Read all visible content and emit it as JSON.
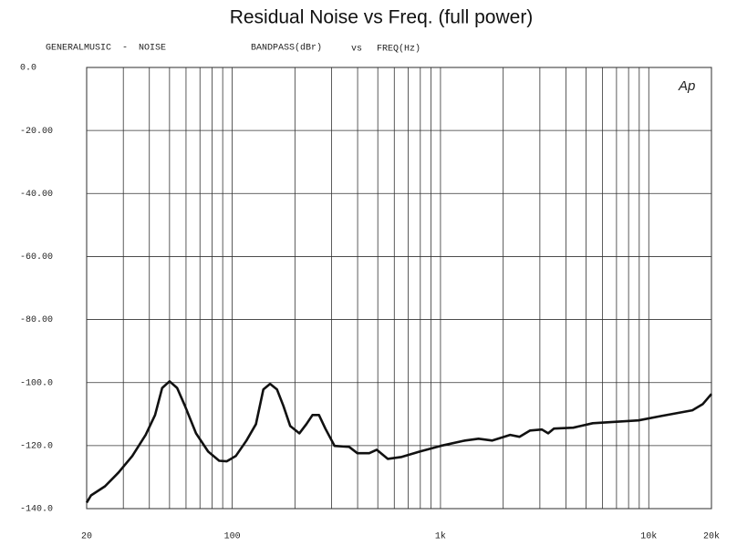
{
  "chart_data": {
    "type": "line",
    "title": "Residual Noise vs Freq. (full power)",
    "header": [
      "GENERALMUSIC  -  NOISE",
      "BANDPASS(dBr)",
      "vs",
      "FREQ(Hz)"
    ],
    "logo": "Ap",
    "log_x": true,
    "grid": true,
    "xlim": [
      20,
      20000
    ],
    "ylim": [
      -140,
      0
    ],
    "xticks": [
      20,
      100,
      {
        "value": 1000,
        "label": "1k"
      },
      {
        "value": 10000,
        "label": "10k"
      },
      {
        "value": 20000,
        "label": "20k"
      }
    ],
    "x_minor_grid": [
      30,
      40,
      50,
      60,
      70,
      80,
      90,
      200,
      300,
      400,
      500,
      600,
      700,
      800,
      900,
      2000,
      3000,
      4000,
      5000,
      6000,
      7000,
      8000,
      9000
    ],
    "yticks": [
      {
        "value": 0,
        "label": "0.0"
      },
      {
        "value": -20,
        "label": "-20.00"
      },
      {
        "value": -40,
        "label": "-40.00"
      },
      {
        "value": -60,
        "label": "-60.00"
      },
      {
        "value": -80,
        "label": "-80.00"
      },
      {
        "value": -100,
        "label": "-100.0"
      },
      {
        "value": -120,
        "label": "-120.0"
      },
      {
        "value": -140,
        "label": "-140.0"
      }
    ],
    "series": [
      {
        "color": "#111111",
        "x": [
          20,
          21,
          24.5,
          28.5,
          33.1,
          38.4,
          42.6,
          46.1,
          50,
          54.4,
          59.3,
          67,
          76.6,
          86.6,
          94,
          104,
          117,
          130,
          141,
          152,
          164,
          176,
          190,
          210,
          227,
          243,
          261,
          280,
          310,
          364,
          399,
          455,
          494,
          558,
          651,
          795,
          1000,
          1311,
          1523,
          1773,
          2160,
          2393,
          2694,
          3068,
          3290,
          3500,
          4340,
          5380,
          8930,
          11480,
          16200,
          18200,
          20000
        ],
        "values": [
          -138.1,
          -135.8,
          -132.9,
          -128.5,
          -123.3,
          -116.6,
          -110.3,
          -101.7,
          -99.6,
          -101.7,
          -107.4,
          -116.1,
          -121.9,
          -124.8,
          -125.0,
          -123.3,
          -118.4,
          -113.2,
          -102.2,
          -100.4,
          -102.2,
          -107.4,
          -113.8,
          -116.1,
          -113.2,
          -110.3,
          -110.3,
          -114.6,
          -120.1,
          -120.4,
          -122.4,
          -122.4,
          -121.3,
          -124.2,
          -123.6,
          -121.9,
          -120.1,
          -118.4,
          -117.8,
          -118.4,
          -116.6,
          -117.2,
          -115.2,
          -114.9,
          -116.1,
          -114.6,
          -114.3,
          -112.9,
          -112.0,
          -110.6,
          -108.8,
          -106.8,
          -103.6
        ]
      }
    ]
  }
}
